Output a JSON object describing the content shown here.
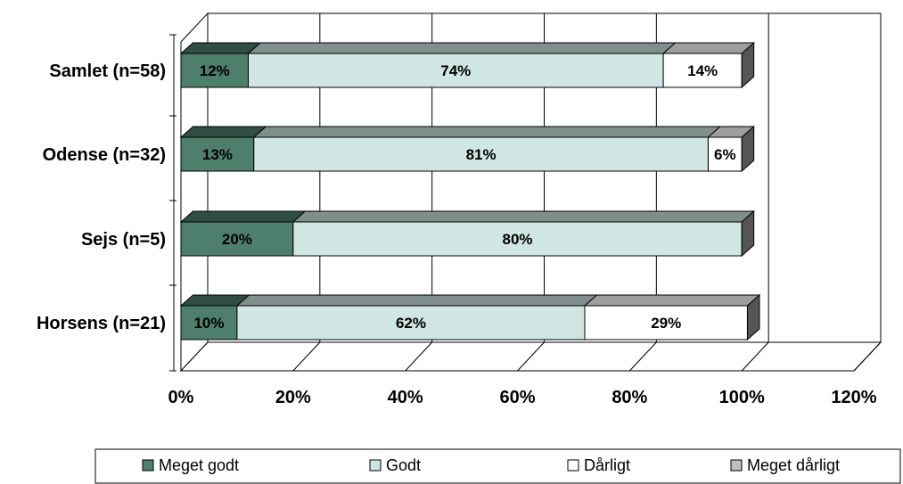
{
  "chart_data": {
    "type": "bar",
    "orientation": "horizontal",
    "stacked": true,
    "three_d": true,
    "categories": [
      "Samlet (n=58)",
      "Odense (n=32)",
      "Sejs (n=5)",
      "Horsens (n=21)"
    ],
    "series": [
      {
        "name": "Meget godt",
        "color": "#4e7e6c",
        "values": [
          12,
          13,
          20,
          10
        ],
        "labels": [
          "12%",
          "13%",
          "20%",
          "10%"
        ]
      },
      {
        "name": "Godt",
        "color": "#d0e6e2",
        "values": [
          74,
          81,
          80,
          62
        ],
        "labels": [
          "74%",
          "81%",
          "80%",
          "62%"
        ]
      },
      {
        "name": "Dårligt",
        "color": "#ffffff",
        "values": [
          14,
          6,
          0,
          29
        ],
        "labels": [
          "14%",
          "6%",
          "",
          "29%"
        ]
      },
      {
        "name": "Meget dårligt",
        "color": "#c0c0c0",
        "values": [
          0,
          0,
          0,
          0
        ],
        "labels": [
          "",
          "",
          "",
          ""
        ]
      }
    ],
    "xlim": [
      0,
      120
    ],
    "xticks": [
      "0%",
      "20%",
      "40%",
      "60%",
      "80%",
      "100%",
      "120%"
    ],
    "grid": true,
    "legend_position": "bottom"
  }
}
